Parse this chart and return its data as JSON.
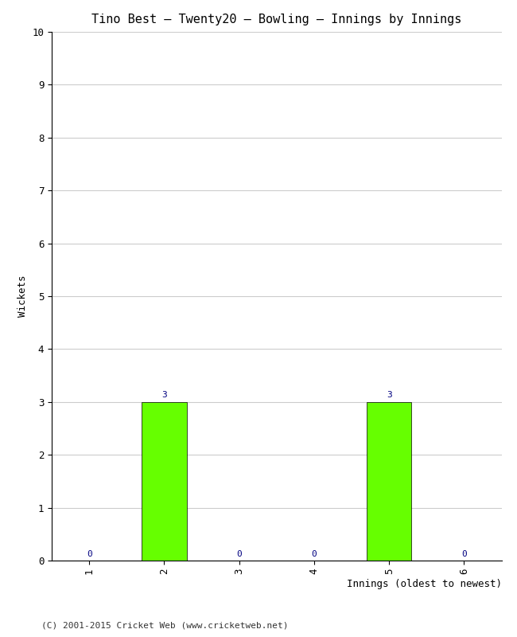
{
  "title": "Tino Best – Twenty20 – Bowling – Innings by Innings",
  "xlabel": "Innings (oldest to newest)",
  "ylabel": "Wickets",
  "categories": [
    "1",
    "2",
    "3",
    "4",
    "5",
    "6"
  ],
  "values": [
    0,
    3,
    0,
    0,
    3,
    0
  ],
  "bar_color": "#66ff00",
  "bar_edge_color": "#000000",
  "label_color": "#000080",
  "ylim": [
    0,
    10
  ],
  "yticks": [
    0,
    1,
    2,
    3,
    4,
    5,
    6,
    7,
    8,
    9,
    10
  ],
  "background_color": "#ffffff",
  "grid_color": "#cccccc",
  "title_fontsize": 11,
  "axis_label_fontsize": 9,
  "tick_fontsize": 9,
  "annotation_fontsize": 8,
  "footer": "(C) 2001-2015 Cricket Web (www.cricketweb.net)",
  "footer_fontsize": 8
}
